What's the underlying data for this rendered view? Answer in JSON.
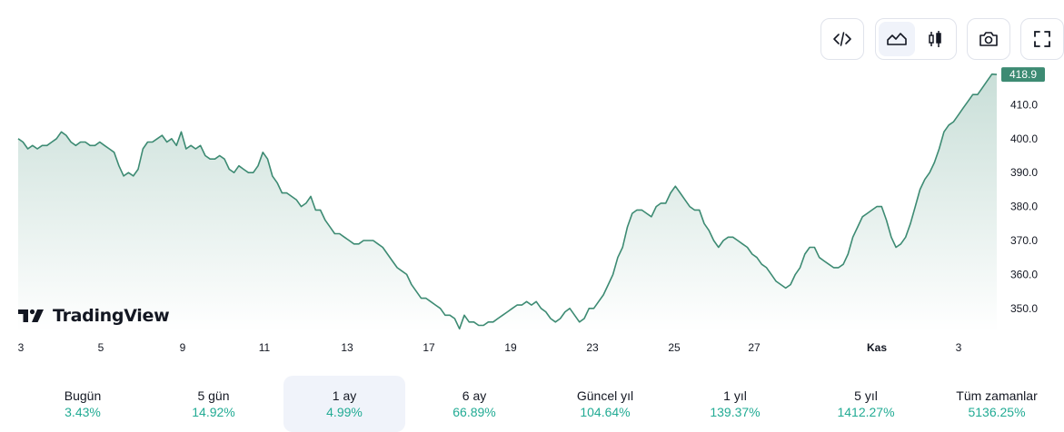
{
  "toolbar": {
    "buttons": [
      {
        "name": "embed-code-icon"
      },
      {
        "name": "area-chart-icon",
        "active": true
      },
      {
        "name": "candlestick-icon"
      },
      {
        "name": "camera-icon"
      },
      {
        "name": "fullscreen-icon"
      }
    ]
  },
  "brand": {
    "logo_text": "TradingView"
  },
  "chart_data": {
    "type": "area",
    "ylim": [
      343,
      420
    ],
    "y_ticks": [
      350,
      360,
      370,
      380,
      390,
      400,
      410
    ],
    "y_tick_labels": [
      "350.0",
      "360.0",
      "370.0",
      "380.0",
      "390.0",
      "400.0",
      "410.0"
    ],
    "x_ticks": [
      "3",
      "5",
      "9",
      "11",
      "13",
      "17",
      "19",
      "23",
      "25",
      "27",
      "Kas",
      "3"
    ],
    "last_value_label": "418.9",
    "line_color": "#3d8b73",
    "series": [
      {
        "values": [
          400,
          399,
          397,
          398,
          397,
          398,
          398,
          399,
          400,
          402,
          401,
          399,
          398,
          399,
          399,
          398,
          398,
          399,
          398,
          397,
          396,
          392,
          389,
          390,
          389,
          391,
          397,
          399,
          399,
          400,
          401,
          399,
          400,
          398,
          402,
          397,
          398,
          397,
          398,
          395,
          394,
          394,
          395,
          394,
          391,
          390,
          392,
          391,
          390,
          390,
          392,
          396,
          394,
          389,
          387,
          384,
          384,
          383,
          382,
          380,
          381,
          383,
          379,
          379,
          376,
          374,
          372,
          372,
          371,
          370,
          369,
          369,
          370,
          370,
          370,
          369,
          368,
          366,
          364,
          362,
          361,
          360,
          357,
          355,
          353,
          353,
          352,
          351,
          350,
          348,
          348,
          347,
          344,
          348,
          346,
          346,
          345,
          345,
          346,
          346,
          347,
          348,
          349,
          350,
          351,
          351,
          352,
          351,
          352,
          350,
          349,
          347,
          346,
          347,
          349,
          350,
          348,
          346,
          347,
          350,
          350,
          352,
          354,
          357,
          360,
          365,
          368,
          374,
          378,
          379,
          379,
          378,
          377,
          380,
          381,
          381,
          384,
          386,
          384,
          382,
          380,
          379,
          379,
          375,
          373,
          370,
          368,
          370,
          371,
          371,
          370,
          369,
          368,
          366,
          365,
          363,
          362,
          360,
          358,
          357,
          356,
          357,
          360,
          362,
          366,
          368,
          368,
          365,
          364,
          363,
          362,
          362,
          363,
          366,
          371,
          374,
          377,
          378,
          379,
          380,
          380,
          376,
          371,
          368,
          369,
          371,
          375,
          380,
          385,
          388,
          390,
          393,
          397,
          402,
          404,
          405,
          407,
          409,
          411,
          413,
          413,
          415,
          417,
          419,
          418.9
        ]
      }
    ]
  },
  "periods": [
    {
      "label": "Bugün",
      "value": "3.43%"
    },
    {
      "label": "5 gün",
      "value": "14.92%"
    },
    {
      "label": "1 ay",
      "value": "4.99%",
      "active": true
    },
    {
      "label": "6 ay",
      "value": "66.89%"
    },
    {
      "label": "Güncel yıl",
      "value": "104.64%"
    },
    {
      "label": "1 yıl",
      "value": "139.37%"
    },
    {
      "label": "5 yıl",
      "value": "1412.27%"
    },
    {
      "label": "Tüm zamanlar",
      "value": "5136.25%"
    }
  ]
}
